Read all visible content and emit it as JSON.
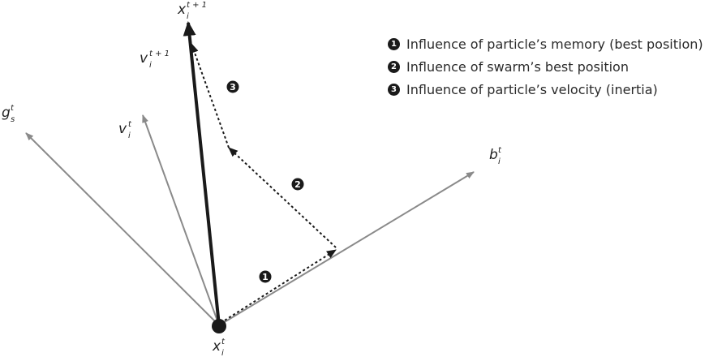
{
  "labels": {
    "x_next": {
      "main": "x",
      "sub": "i",
      "sup": "t + 1"
    },
    "v_next": {
      "main": "v",
      "sub": "i",
      "sup": "t + 1"
    },
    "g_t": {
      "main": "g",
      "sub": "s",
      "sup": "t"
    },
    "v_t": {
      "main": "v",
      "sub": "i",
      "sup": "t"
    },
    "b_t": {
      "main": "b",
      "sub": "i",
      "sup": "t"
    },
    "x_t": {
      "main": "x",
      "sub": "i",
      "sup": "t"
    }
  },
  "badges": {
    "one": "1",
    "two": "2",
    "three": "3"
  },
  "legend": [
    {
      "marker": "1",
      "text": "Influence of particle’s memory (best position)"
    },
    {
      "marker": "2",
      "text": "Influence of swarm’s best position"
    },
    {
      "marker": "3",
      "text": "Influence of particle’s velocity (inertia)"
    }
  ],
  "colors": {
    "dark_vector": "#1a1a1a",
    "gray_vector": "#8a8a8a"
  }
}
